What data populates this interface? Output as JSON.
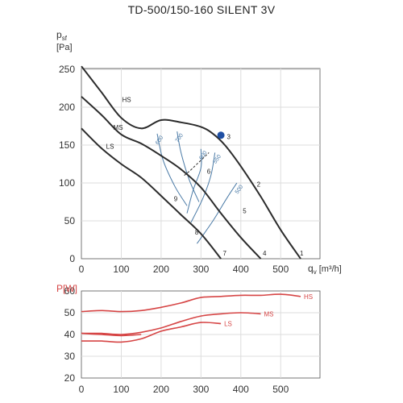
{
  "title": "TD-500/150-160 SILENT 3V",
  "pressure_chart": {
    "ylabel_main": "p",
    "ylabel_sub": "sf",
    "yunit": "[Pa]",
    "xlabel_main": "q",
    "xlabel_sub": "v",
    "xunit": "[m³/h]"
  },
  "power_chart": {
    "ylabel": "P[W]"
  },
  "colors": {
    "curve": "#2b2b2b",
    "noise": "#4a7aa6",
    "point": "#1f4fa3",
    "power": "#d64545",
    "power_label": "#d64545",
    "grid": "#dddddd"
  },
  "chart_data": [
    {
      "type": "line",
      "title": "TD-500/150-160 SILENT 3V",
      "xlabel": "q_v [m³/h]",
      "ylabel": "p_sf [Pa]",
      "xlim": [
        0,
        550
      ],
      "ylim": [
        0,
        250
      ],
      "xticks": [
        "0",
        "100",
        "200",
        "300",
        "400",
        "500"
      ],
      "yticks": [
        "0",
        "50",
        "100",
        "150",
        "200",
        "250"
      ],
      "grid": true,
      "series": [
        {
          "name": "HS",
          "x": [
            0,
            50,
            100,
            150,
            200,
            250,
            300,
            330,
            360,
            400,
            450,
            500,
            550
          ],
          "y": [
            254,
            220,
            186,
            172,
            183,
            180,
            174,
            165,
            150,
            122,
            82,
            38,
            0
          ]
        },
        {
          "name": "MS",
          "x": [
            0,
            50,
            100,
            150,
            200,
            250,
            300,
            350,
            400,
            450
          ],
          "y": [
            214,
            190,
            164,
            152,
            136,
            118,
            94,
            60,
            28,
            0
          ]
        },
        {
          "name": "LS",
          "x": [
            0,
            50,
            100,
            150,
            200,
            250,
            300,
            350
          ],
          "y": [
            172,
            146,
            125,
            107,
            83,
            58,
            33,
            0
          ]
        }
      ],
      "noise_curves": [
        {
          "label": "600",
          "x": [
            190,
            205,
            235,
            265
          ],
          "y": [
            165,
            130,
            95,
            70
          ]
        },
        {
          "label": "700",
          "x": [
            240,
            250,
            270,
            295
          ],
          "y": [
            168,
            140,
            105,
            75
          ]
        },
        {
          "label": "600",
          "x": [
            300,
            300,
            280,
            265
          ],
          "y": [
            145,
            120,
            90,
            60
          ]
        },
        {
          "label": "550",
          "x": [
            335,
            325,
            305,
            275
          ],
          "y": [
            140,
            110,
            80,
            48
          ]
        },
        {
          "label": "500",
          "x": [
            390,
            365,
            330,
            290
          ],
          "y": [
            100,
            80,
            50,
            20
          ]
        }
      ],
      "system_line": {
        "x": [
          258,
          270,
          290,
          320
        ],
        "y": [
          110,
          115,
          125,
          140
        ]
      },
      "operating_point": {
        "x": 350,
        "y": 163
      },
      "annotations": [
        {
          "text": "HS",
          "x": 102,
          "y": 207
        },
        {
          "text": "MS",
          "x": 80,
          "y": 170
        },
        {
          "text": "LS",
          "x": 62,
          "y": 145
        },
        {
          "text": "1",
          "x": 548,
          "y": 4
        },
        {
          "text": "2",
          "x": 440,
          "y": 95
        },
        {
          "text": "3",
          "x": 365,
          "y": 158
        },
        {
          "text": "4",
          "x": 455,
          "y": 4
        },
        {
          "text": "5",
          "x": 405,
          "y": 60
        },
        {
          "text": "6",
          "x": 315,
          "y": 112
        },
        {
          "text": "7",
          "x": 355,
          "y": 4
        },
        {
          "text": "8",
          "x": 285,
          "y": 32
        },
        {
          "text": "9",
          "x": 232,
          "y": 76
        }
      ]
    },
    {
      "type": "line",
      "xlabel": "",
      "ylabel": "P[W]",
      "xlim": [
        0,
        550
      ],
      "ylim": [
        20,
        60
      ],
      "yticks": [
        "20",
        "30",
        "40",
        "50",
        "60"
      ],
      "xticks": [
        "0",
        "100",
        "200",
        "300",
        "400",
        "500"
      ],
      "grid": true,
      "series": [
        {
          "name": "HS",
          "x": [
            0,
            50,
            100,
            150,
            200,
            250,
            300,
            350,
            400,
            450,
            500,
            550
          ],
          "y": [
            50.5,
            51,
            50.5,
            51,
            52.5,
            54.5,
            57,
            57.5,
            58,
            58,
            58.5,
            57.5
          ]
        },
        {
          "name": "MS",
          "x": [
            0,
            50,
            100,
            150,
            200,
            250,
            300,
            350,
            400,
            450
          ],
          "y": [
            40.5,
            40.5,
            40,
            41,
            43,
            46,
            48.5,
            49.5,
            50,
            49.5
          ]
        },
        {
          "name": "LS",
          "x": [
            0,
            50,
            100,
            150,
            200,
            250,
            300,
            350
          ],
          "y": [
            37,
            37,
            36.5,
            38,
            41.5,
            43.5,
            45.5,
            45
          ]
        },
        {
          "name": "",
          "x": [
            0,
            50,
            100,
            150
          ],
          "y": [
            40.5,
            40,
            39.5,
            40
          ]
        }
      ]
    }
  ]
}
